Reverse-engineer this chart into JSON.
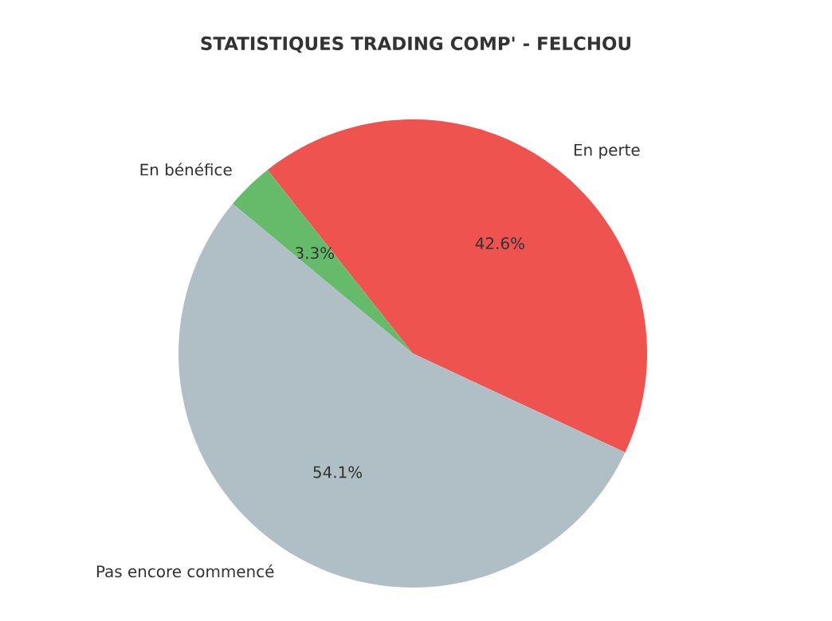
{
  "chart_data": {
    "type": "pie",
    "title": "STATISTIQUES TRADING COMP' - FELCHOU",
    "categories": [
      "En perte",
      "En bénéfice",
      "Pas encore commencé"
    ],
    "values": [
      42.6,
      3.3,
      54.1
    ],
    "value_labels": [
      "42.6%",
      "3.3%",
      "54.1%"
    ],
    "colors": [
      "#ef5350",
      "#66bb6a",
      "#b0bec5"
    ]
  }
}
